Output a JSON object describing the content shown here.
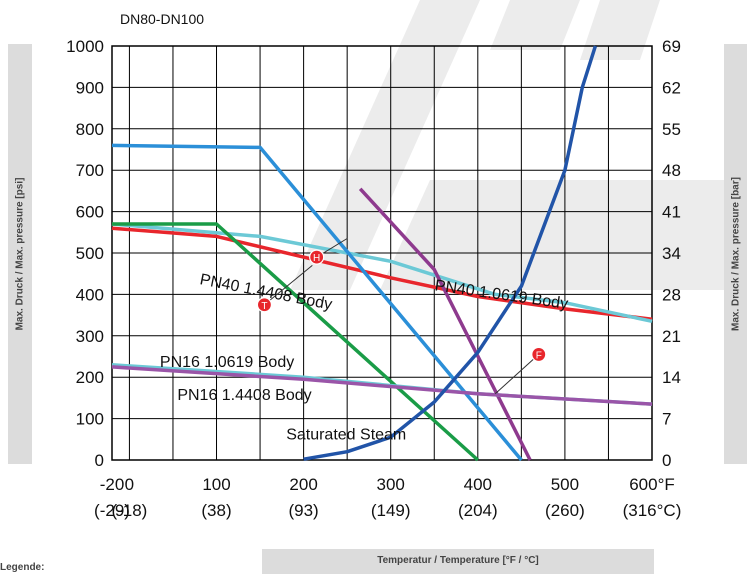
{
  "chart_data": {
    "type": "line",
    "title": "DN80-DN100",
    "xlabel": "Temperatur / Temperature [°F / °C]",
    "ylabel_left": "Max. Druck / Max. pressure [psi]",
    "ylabel_right": "Max. Druck / Max. pressure [bar]",
    "xlim": [
      -20,
      600
    ],
    "ylim": [
      0,
      1000
    ],
    "grid": true,
    "x_ticks": [
      {
        "f": "-20",
        "c": "(-29)",
        "value": -20
      },
      {
        "f": "0",
        "c": "(-18)",
        "value": 0
      },
      {
        "f": "100",
        "c": "(38)",
        "value": 100
      },
      {
        "f": "200",
        "c": "(93)",
        "value": 200
      },
      {
        "f": "300",
        "c": "(149)",
        "value": 300
      },
      {
        "f": "400",
        "c": "(204)",
        "value": 400
      },
      {
        "f": "500",
        "c": "(260)",
        "value": 500
      },
      {
        "f": "600°F",
        "c": "(316°C)",
        "value": 600
      }
    ],
    "y_ticks_left": [
      0,
      100,
      200,
      300,
      400,
      500,
      600,
      700,
      800,
      900,
      1000
    ],
    "y_ticks_right": [
      "0",
      "7",
      "14",
      "21",
      "28",
      "34",
      "41",
      "48",
      "55",
      "62",
      "69"
    ],
    "series": [
      {
        "color": "#e8262c",
        "points": [
          [
            -20,
            560
          ],
          [
            100,
            540
          ],
          [
            300,
            440
          ],
          [
            400,
            395
          ],
          [
            500,
            365
          ],
          [
            600,
            340
          ]
        ]
      },
      {
        "color": "#6cc9d6",
        "points": [
          [
            -20,
            570
          ],
          [
            150,
            540
          ],
          [
            300,
            480
          ],
          [
            420,
            400
          ],
          [
            500,
            380
          ],
          [
            600,
            335
          ]
        ]
      },
      {
        "color": "#1a9c47",
        "points": [
          [
            -20,
            570
          ],
          [
            100,
            570
          ],
          [
            400,
            0
          ]
        ]
      },
      {
        "color": "#2b8fd8",
        "points": [
          [
            -20,
            760
          ],
          [
            150,
            755
          ],
          [
            450,
            0
          ]
        ]
      },
      {
        "color": "#8e3a8e",
        "points": [
          [
            265,
            655
          ],
          [
            350,
            460
          ],
          [
            460,
            0
          ]
        ]
      },
      {
        "color": "#6cc9d6",
        "points": [
          [
            -20,
            230
          ],
          [
            200,
            200
          ],
          [
            400,
            160
          ],
          [
            600,
            135
          ]
        ]
      },
      {
        "color": "#9a55a8",
        "points": [
          [
            -20,
            225
          ],
          [
            200,
            195
          ],
          [
            400,
            160
          ],
          [
            600,
            135
          ]
        ]
      },
      {
        "color": "#2154a8",
        "points": [
          [
            200,
            2
          ],
          [
            250,
            20
          ],
          [
            300,
            55
          ],
          [
            350,
            140
          ],
          [
            400,
            260
          ],
          [
            450,
            420
          ],
          [
            500,
            700
          ],
          [
            520,
            900
          ],
          [
            535,
            1000
          ]
        ]
      }
    ],
    "annotations": [
      {
        "text": "PN40  1.4408 Body",
        "x": 80,
        "y": 425,
        "rotate": 11
      },
      {
        "text": "PN40  1.0619 Body",
        "x": 350,
        "y": 410,
        "rotate": 8
      },
      {
        "text": "PN16  1.0619 Body",
        "x": 35,
        "y": 225,
        "rotate": 0
      },
      {
        "text": "PN16  1.4408 Body",
        "x": 55,
        "y": 145,
        "rotate": 0
      },
      {
        "text": "Saturated Steam",
        "x": 180,
        "y": 50,
        "rotate": 0
      }
    ],
    "markers": [
      {
        "label": "H",
        "x": 215,
        "y": 490,
        "leader_to": [
          250,
          535
        ]
      },
      {
        "label": "T",
        "x": 155,
        "y": 375,
        "leader_to": [
          210,
          470
        ]
      },
      {
        "label": "F",
        "x": 470,
        "y": 255,
        "leader_to": [
          420,
          160
        ]
      }
    ]
  },
  "legend_heading": "Legende:"
}
